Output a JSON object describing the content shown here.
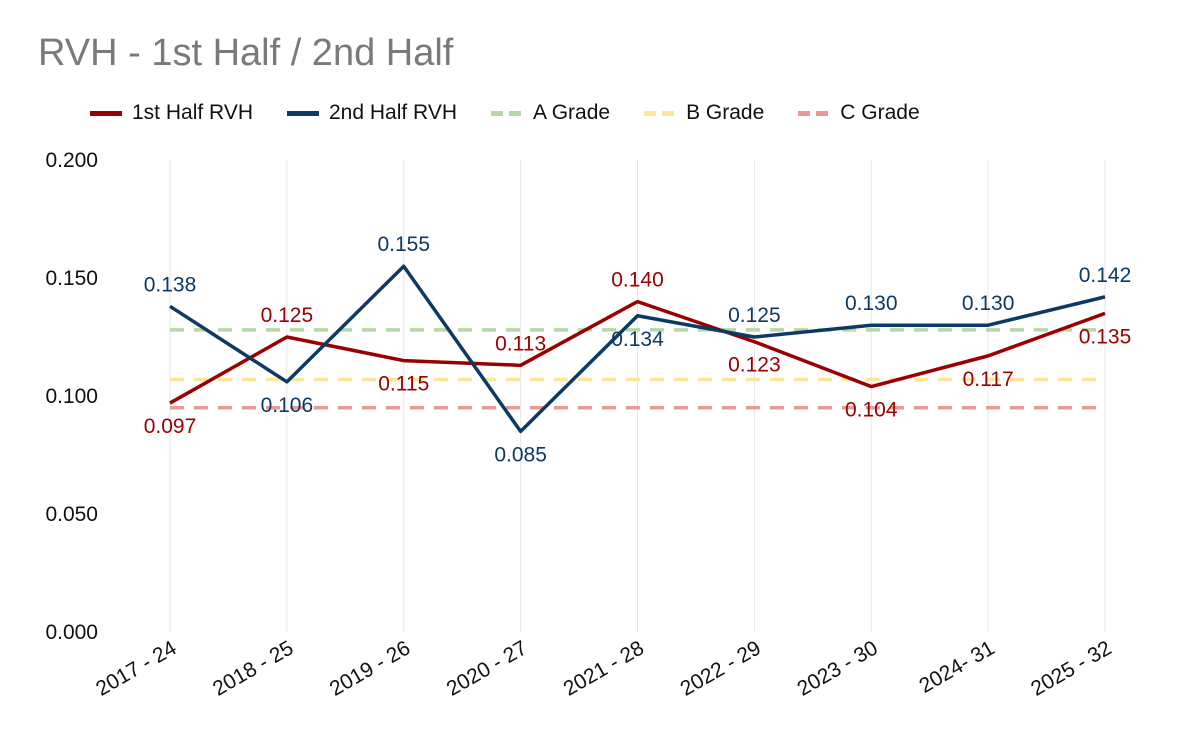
{
  "chart_data": {
    "type": "line",
    "title": "RVH - 1st Half / 2nd Half",
    "xlabel": "",
    "ylabel": "",
    "categories": [
      "2017 - 24",
      "2018 - 25",
      "2019 - 26",
      "2020 - 27",
      "2021 - 28",
      "2022 - 29",
      "2023 - 30",
      "2024- 31",
      "2025 - 32"
    ],
    "ylim": [
      0,
      0.2
    ],
    "yticks": [
      "0.000",
      "0.050",
      "0.100",
      "0.150",
      "0.200"
    ],
    "series": [
      {
        "name": "1st Half RVH",
        "color": "#990000",
        "style": "solid",
        "values": [
          0.097,
          0.125,
          0.115,
          0.113,
          0.14,
          0.123,
          0.104,
          0.117,
          0.135
        ],
        "labels": [
          "0.097",
          "0.125",
          "0.115",
          "0.113",
          "0.140",
          "0.123",
          "0.104",
          "0.117",
          "0.135"
        ]
      },
      {
        "name": "2nd Half RVH",
        "color": "#0d3a63",
        "style": "solid",
        "values": [
          0.138,
          0.106,
          0.155,
          0.085,
          0.134,
          0.125,
          0.13,
          0.13,
          0.142
        ],
        "labels": [
          "0.138",
          "0.106",
          "0.155",
          "0.085",
          "0.134",
          "0.125",
          "0.130",
          "0.130",
          "0.142"
        ]
      },
      {
        "name": "A Grade",
        "color": "#b6d7a8",
        "style": "dashed",
        "value": 0.128
      },
      {
        "name": "B Grade",
        "color": "#ffe599",
        "style": "dashed",
        "value": 0.107
      },
      {
        "name": "C Grade",
        "color": "#ea9999",
        "style": "dashed",
        "value": 0.095
      }
    ],
    "grid": "vertical",
    "legend": "top"
  }
}
